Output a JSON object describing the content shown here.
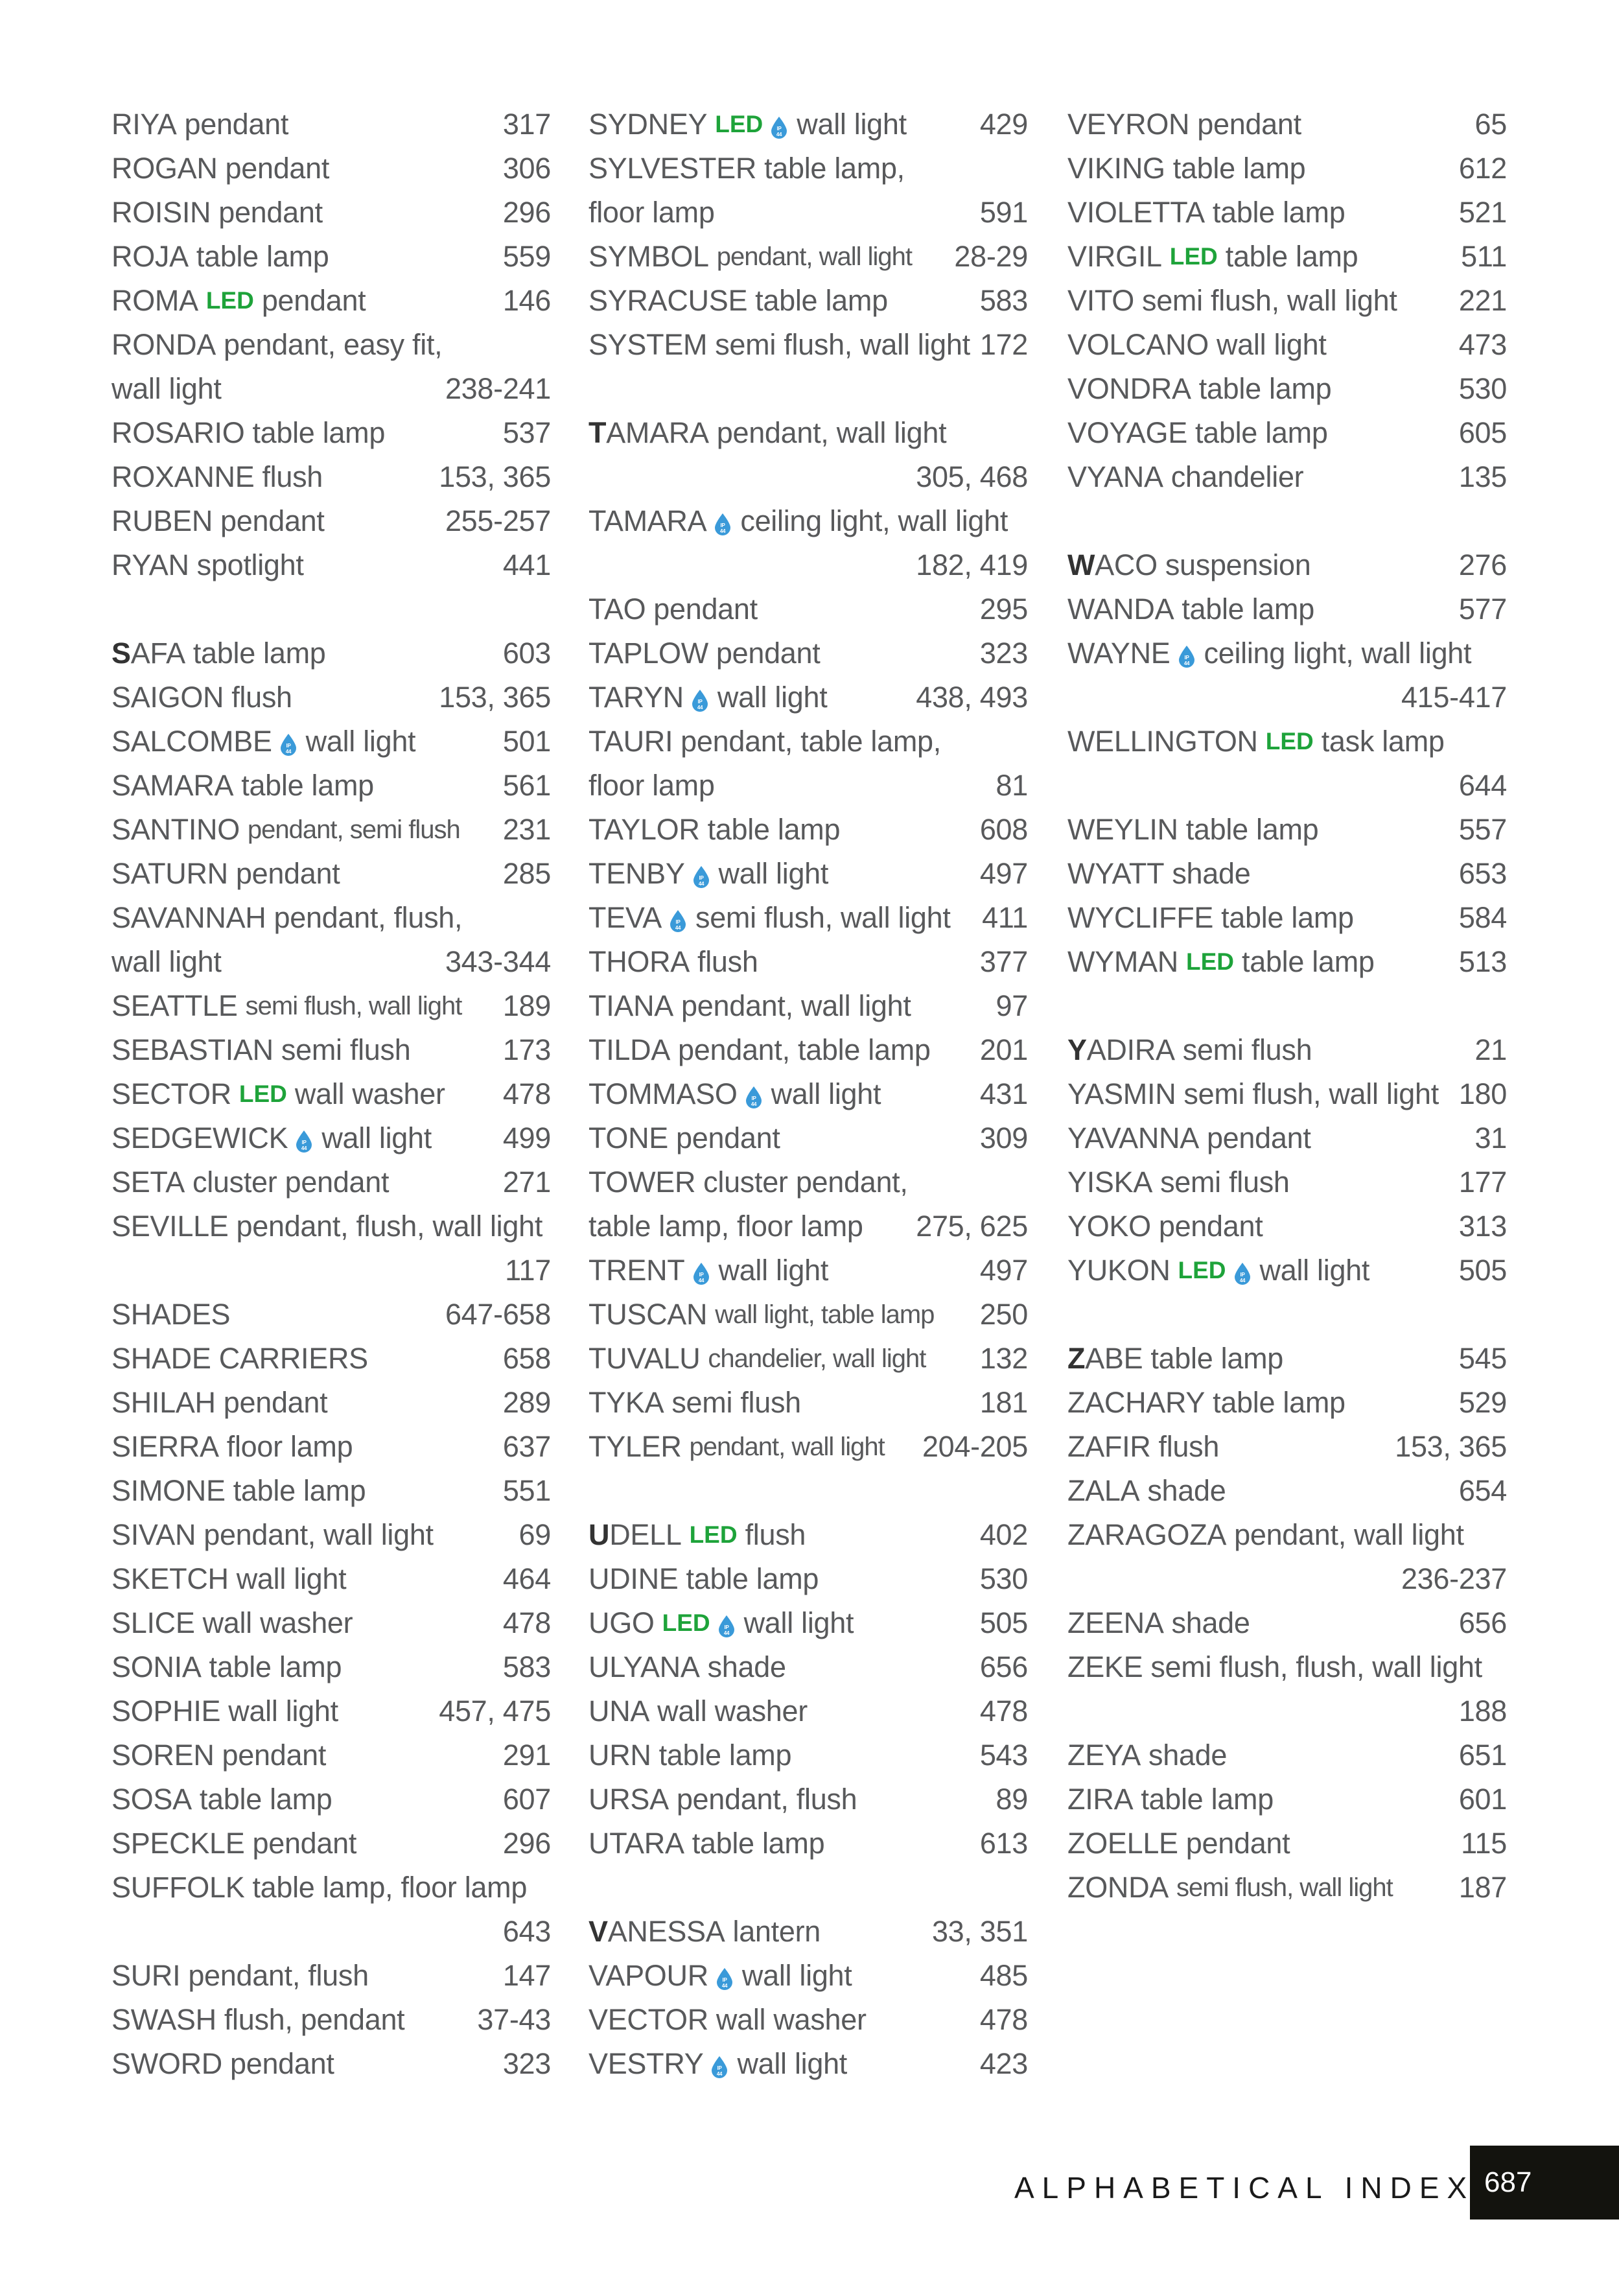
{
  "colors": {
    "text": "#58595b",
    "led": "#1ea33a",
    "ip_drop": "#3a9ad9",
    "page_box": "#13130e"
  },
  "icons": {
    "ip": "ip44-water-drop-icon",
    "ip_text": "IP 44"
  },
  "led_label": "LED",
  "columns": [
    [
      {
        "n": "RIYA",
        "d": "pendant",
        "p": "317"
      },
      {
        "n": "ROGAN",
        "d": "pendant",
        "p": "306"
      },
      {
        "n": "ROISIN",
        "d": "pendant",
        "p": "296"
      },
      {
        "n": "ROJA",
        "d": "table lamp",
        "p": "559"
      },
      {
        "n": "ROMA",
        "led": true,
        "d": "pendant",
        "p": "146"
      },
      {
        "n": "RONDA",
        "d": "pendant, easy fit,"
      },
      {
        "d": "wall light",
        "p": "238-241"
      },
      {
        "n": "ROSARIO",
        "d": "table lamp",
        "p": "537"
      },
      {
        "n": "ROXANNE",
        "d": "flush",
        "p": "153, 365"
      },
      {
        "n": "RUBEN",
        "d": "pendant",
        "p": "255-257"
      },
      {
        "n": "RYAN",
        "d": "spotlight",
        "p": "441"
      },
      {},
      {
        "n": "SAFA",
        "init": true,
        "d": "table lamp",
        "p": "603"
      },
      {
        "n": "SAIGON",
        "d": "flush",
        "p": "153, 365"
      },
      {
        "n": "SALCOMBE",
        "ip": true,
        "d": "wall light",
        "p": "501"
      },
      {
        "n": "SAMARA",
        "d": "table lamp",
        "p": "561"
      },
      {
        "n": "SANTINO",
        "d": "pendant, semi flush",
        "p": "231",
        "t": true
      },
      {
        "n": "SATURN",
        "d": "pendant",
        "p": "285"
      },
      {
        "n": "SAVANNAH",
        "d": "pendant, flush,"
      },
      {
        "d": "wall light",
        "p": "343-344"
      },
      {
        "n": "SEATTLE",
        "d": "semi flush, wall light",
        "p": "189",
        "t": true
      },
      {
        "n": "SEBASTIAN",
        "d": "semi flush",
        "p": "173"
      },
      {
        "n": "SECTOR",
        "led": true,
        "d": "wall washer",
        "p": "478"
      },
      {
        "n": "SEDGEWICK",
        "ip": true,
        "d": "wall light",
        "p": "499"
      },
      {
        "n": "SETA",
        "d": "cluster pendant",
        "p": "271"
      },
      {
        "n": "SEVILLE",
        "d": "pendant, flush, wall light"
      },
      {
        "p": "117"
      },
      {
        "n": "SHADES",
        "p": "647-658"
      },
      {
        "n": "SHADE CARRIERS",
        "p": "658"
      },
      {
        "n": "SHILAH",
        "d": "pendant",
        "p": "289"
      },
      {
        "n": "SIERRA",
        "d": "floor lamp",
        "p": "637"
      },
      {
        "n": "SIMONE",
        "d": "table lamp",
        "p": "551"
      },
      {
        "n": "SIVAN",
        "d": "pendant, wall light",
        "p": "69"
      },
      {
        "n": "SKETCH",
        "d": "wall light",
        "p": "464"
      },
      {
        "n": "SLICE",
        "d": "wall washer",
        "p": "478"
      },
      {
        "n": "SONIA",
        "d": "table lamp",
        "p": "583"
      },
      {
        "n": "SOPHIE",
        "d": "wall light",
        "p": "457, 475"
      },
      {
        "n": "SOREN",
        "d": "pendant",
        "p": "291"
      },
      {
        "n": "SOSA",
        "d": "table lamp",
        "p": "607"
      },
      {
        "n": "SPECKLE",
        "d": "pendant",
        "p": "296"
      },
      {
        "n": "SUFFOLK",
        "d": "table lamp, floor lamp"
      },
      {
        "p": "643"
      },
      {
        "n": "SURI",
        "d": "pendant, flush",
        "p": "147"
      },
      {
        "n": "SWASH",
        "d": "flush, pendant",
        "p": "37-43"
      },
      {
        "n": "SWORD",
        "d": "pendant",
        "p": "323"
      }
    ],
    [
      {
        "n": "SYDNEY",
        "led": true,
        "ip": true,
        "d": "wall light",
        "p": "429"
      },
      {
        "n": "SYLVESTER",
        "d": "table lamp,"
      },
      {
        "d": "floor lamp",
        "p": "591"
      },
      {
        "n": "SYMBOL",
        "d": "pendant, wall light",
        "p": "28-29",
        "t": true
      },
      {
        "n": "SYRACUSE",
        "d": "table lamp",
        "p": "583"
      },
      {
        "n": "SYSTEM",
        "d": "semi flush, wall light",
        "p": "172"
      },
      {},
      {
        "n": "TAMARA",
        "init": true,
        "d": "pendant, wall light"
      },
      {
        "p": "305, 468"
      },
      {
        "n": "TAMARA",
        "ip": true,
        "d": "ceiling light, wall light"
      },
      {
        "p": "182, 419"
      },
      {
        "n": "TAO",
        "d": "pendant",
        "p": "295"
      },
      {
        "n": "TAPLOW",
        "d": "pendant",
        "p": "323"
      },
      {
        "n": "TARYN",
        "ip": true,
        "d": "wall light",
        "p": "438, 493"
      },
      {
        "n": "TAURI",
        "d": "pendant, table lamp,"
      },
      {
        "d": "floor lamp",
        "p": "81"
      },
      {
        "n": "TAYLOR",
        "d": "table lamp",
        "p": "608"
      },
      {
        "n": "TENBY",
        "ip": true,
        "d": "wall light",
        "p": "497"
      },
      {
        "n": "TEVA",
        "ip": true,
        "d": "semi flush, wall light",
        "p": "411"
      },
      {
        "n": "THORA",
        "d": "flush",
        "p": "377"
      },
      {
        "n": "TIANA",
        "d": "pendant, wall light",
        "p": "97"
      },
      {
        "n": "TILDA",
        "d": "pendant, table lamp",
        "p": "201"
      },
      {
        "n": "TOMMASO",
        "ip": true,
        "d": "wall light",
        "p": "431"
      },
      {
        "n": "TONE",
        "d": "pendant",
        "p": "309"
      },
      {
        "n": "TOWER",
        "d": "cluster pendant,"
      },
      {
        "d": "table lamp, floor lamp",
        "p": "275, 625"
      },
      {
        "n": "TRENT",
        "ip": true,
        "d": "wall light",
        "p": "497"
      },
      {
        "n": "TUSCAN",
        "d": "wall light, table lamp",
        "p": "250",
        "t": true
      },
      {
        "n": "TUVALU",
        "d": "chandelier, wall light",
        "p": "132",
        "t": true
      },
      {
        "n": "TYKA",
        "d": "semi flush",
        "p": "181"
      },
      {
        "n": "TYLER",
        "d": "pendant, wall light",
        "p": "204-205",
        "t": true
      },
      {},
      {
        "n": "UDELL",
        "init": true,
        "led": true,
        "d": "flush",
        "p": "402"
      },
      {
        "n": "UDINE",
        "d": "table lamp",
        "p": "530"
      },
      {
        "n": "UGO",
        "led": true,
        "ip": true,
        "d": "wall light",
        "p": "505"
      },
      {
        "n": "ULYANA",
        "d": "shade",
        "p": "656"
      },
      {
        "n": "UNA",
        "d": "wall washer",
        "p": "478"
      },
      {
        "n": "URN",
        "d": "table lamp",
        "p": "543"
      },
      {
        "n": "URSA",
        "d": "pendant, flush",
        "p": "89"
      },
      {
        "n": "UTARA",
        "d": "table lamp",
        "p": "613"
      },
      {},
      {
        "n": "VANESSA",
        "init": true,
        "d": "lantern",
        "p": "33, 351"
      },
      {
        "n": "VAPOUR",
        "ip": true,
        "d": "wall light",
        "p": "485"
      },
      {
        "n": "VECTOR",
        "d": "wall washer",
        "p": "478"
      },
      {
        "n": "VESTRY",
        "ip": true,
        "d": "wall light",
        "p": "423"
      }
    ],
    [
      {
        "n": "VEYRON",
        "d": "pendant",
        "p": "65"
      },
      {
        "n": "VIKING",
        "d": "table lamp",
        "p": "612"
      },
      {
        "n": "VIOLETTA",
        "d": "table lamp",
        "p": "521"
      },
      {
        "n": "VIRGIL",
        "led": true,
        "d": "table lamp",
        "p": "511"
      },
      {
        "n": "VITO",
        "d": "semi flush, wall light",
        "p": "221"
      },
      {
        "n": "VOLCANO",
        "d": "wall light",
        "p": "473"
      },
      {
        "n": "VONDRA",
        "d": "table lamp",
        "p": "530"
      },
      {
        "n": "VOYAGE",
        "d": "table lamp",
        "p": "605"
      },
      {
        "n": "VYANA",
        "d": "chandelier",
        "p": "135"
      },
      {},
      {
        "n": "WACO",
        "init": true,
        "d": "suspension",
        "p": "276"
      },
      {
        "n": "WANDA",
        "d": "table lamp",
        "p": "577"
      },
      {
        "n": "WAYNE",
        "ip": true,
        "d": "ceiling light, wall light"
      },
      {
        "p": "415-417"
      },
      {
        "n": "WELLINGTON",
        "led": true,
        "d": "task lamp"
      },
      {
        "p": "644"
      },
      {
        "n": "WEYLIN",
        "d": "table lamp",
        "p": "557"
      },
      {
        "n": "WYATT",
        "d": "shade",
        "p": "653"
      },
      {
        "n": "WYCLIFFE",
        "d": "table lamp",
        "p": "584"
      },
      {
        "n": "WYMAN",
        "led": true,
        "d": "table lamp",
        "p": "513"
      },
      {},
      {
        "n": "YADIRA",
        "init": true,
        "d": "semi flush",
        "p": "21"
      },
      {
        "n": "YASMIN",
        "d": "semi flush, wall light",
        "p": "180"
      },
      {
        "n": "YAVANNA",
        "d": "pendant",
        "p": "31"
      },
      {
        "n": "YISKA",
        "d": "semi flush",
        "p": "177"
      },
      {
        "n": "YOKO",
        "d": "pendant",
        "p": "313"
      },
      {
        "n": "YUKON",
        "led": true,
        "ip": true,
        "d": "wall light",
        "p": "505"
      },
      {},
      {
        "n": "ZABE",
        "init": true,
        "d": "table lamp",
        "p": "545"
      },
      {
        "n": "ZACHARY",
        "d": "table lamp",
        "p": "529"
      },
      {
        "n": "ZAFIR",
        "d": "flush",
        "p": "153, 365"
      },
      {
        "n": "ZALA",
        "d": "shade",
        "p": "654"
      },
      {
        "n": "ZARAGOZA",
        "d": "pendant, wall light"
      },
      {
        "p": "236-237"
      },
      {
        "n": "ZEENA",
        "d": "shade",
        "p": "656"
      },
      {
        "n": "ZEKE",
        "d": "semi flush, flush, wall light"
      },
      {
        "p": "188"
      },
      {
        "n": "ZEYA",
        "d": "shade",
        "p": "651"
      },
      {
        "n": "ZIRA",
        "d": "table lamp",
        "p": "601"
      },
      {
        "n": "ZOELLE",
        "d": "pendant",
        "p": "115"
      },
      {
        "n": "ZONDA",
        "d": "semi flush, wall light",
        "p": "187",
        "t": true
      }
    ]
  ],
  "footer": {
    "title": "ALPHABETICAL INDEX",
    "page_number": "687"
  }
}
